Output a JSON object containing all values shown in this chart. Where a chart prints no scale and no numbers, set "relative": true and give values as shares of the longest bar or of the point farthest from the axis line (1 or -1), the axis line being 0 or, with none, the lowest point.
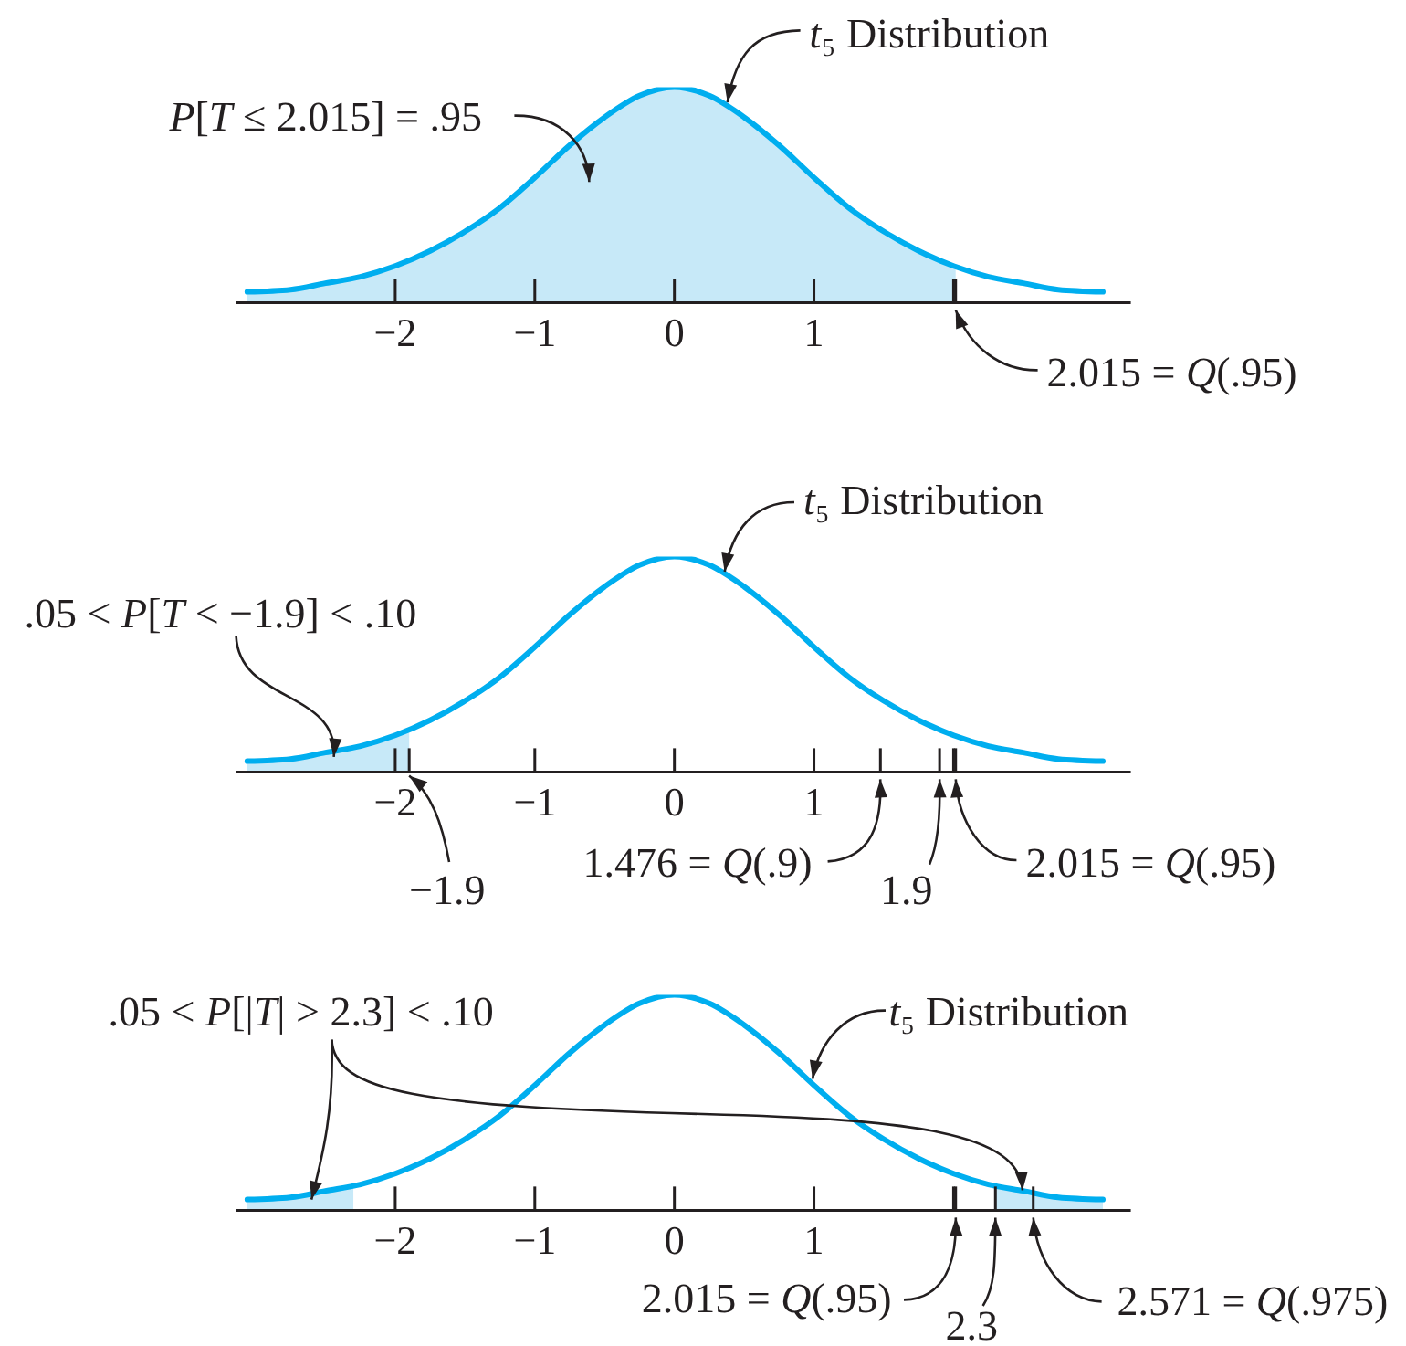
{
  "chart_data": [
    {
      "type": "line",
      "relative": true,
      "xlim": [
        -3.14,
        3.27
      ],
      "xticks": [
        -2,
        -1,
        0,
        1,
        {
          "value": 2,
          "label": null
        },
        {
          "value": 2.015,
          "label": null
        }
      ],
      "series": [
        {
          "type": "area",
          "color": "#c7e9f8",
          "x": [
            -3.06,
            -2.75,
            -2.5,
            -2.25,
            -2,
            -1.75,
            -1.5,
            -1.25,
            -1,
            -0.75,
            -0.5,
            -0.25,
            0,
            0.25,
            0.5,
            0.75,
            1,
            1.25,
            1.5,
            1.75,
            2,
            2.015
          ],
          "values": [
            0.05,
            0.06,
            0.09,
            0.12,
            0.17,
            0.24,
            0.33,
            0.44,
            0.58,
            0.73,
            0.86,
            0.96,
            1,
            0.96,
            0.86,
            0.73,
            0.58,
            0.44,
            0.33,
            0.24,
            0.17,
            0.17
          ]
        },
        {
          "color": "#00aeef",
          "x": [
            -3.06,
            -2.75,
            -2.5,
            -2.25,
            -2,
            -1.75,
            -1.5,
            -1.25,
            -1,
            -0.75,
            -0.5,
            -0.25,
            0,
            0.25,
            0.5,
            0.75,
            1,
            1.25,
            1.5,
            1.75,
            2,
            2.25,
            2.5,
            2.75,
            3.07
          ],
          "values": [
            0.05,
            0.06,
            0.09,
            0.12,
            0.17,
            0.24,
            0.33,
            0.44,
            0.58,
            0.73,
            0.86,
            0.96,
            1,
            0.96,
            0.86,
            0.73,
            0.58,
            0.44,
            0.33,
            0.24,
            0.17,
            0.12,
            0.09,
            0.06,
            0.05
          ]
        }
      ],
      "annotations": [
        {
          "text": "t₅ Distribution",
          "x": 0.38,
          "y": 0.93
        },
        "P[T ≤ 2.015] = .95",
        {
          "text": "2.015 = Q(.95)",
          "x": 2.015,
          "y": 0
        }
      ]
    },
    {
      "type": "line",
      "relative": true,
      "xlim": [
        -3.14,
        3.27
      ],
      "xticks": [
        -2,
        {
          "value": -1.9,
          "label": null
        },
        -1,
        0,
        1,
        {
          "value": 1.476,
          "label": null
        },
        {
          "value": 1.9,
          "label": null
        },
        {
          "value": 2,
          "label": null
        },
        {
          "value": 2.015,
          "label": null
        }
      ],
      "series": [
        {
          "type": "area",
          "color": "#c7e9f8",
          "x": [
            -3.06,
            -2.75,
            -2.5,
            -2.25,
            -2,
            -1.9
          ],
          "values": [
            0.05,
            0.06,
            0.09,
            0.12,
            0.17,
            0.2
          ]
        },
        {
          "color": "#00aeef",
          "x": [
            -3.06,
            -2.75,
            -2.5,
            -2.25,
            -2,
            -1.75,
            -1.5,
            -1.25,
            -1,
            -0.75,
            -0.5,
            -0.25,
            0,
            0.25,
            0.5,
            0.75,
            1,
            1.25,
            1.5,
            1.75,
            2,
            2.25,
            2.5,
            2.75,
            3.07
          ],
          "values": [
            0.05,
            0.06,
            0.09,
            0.12,
            0.17,
            0.24,
            0.33,
            0.44,
            0.58,
            0.73,
            0.86,
            0.96,
            1,
            0.96,
            0.86,
            0.73,
            0.58,
            0.44,
            0.33,
            0.24,
            0.17,
            0.12,
            0.09,
            0.06,
            0.05
          ]
        }
      ],
      "annotations": [
        {
          "text": "t₅ Distribution",
          "x": 0.36,
          "y": 0.93
        },
        {
          "text": ".05 < P[T < −1.9] < .10",
          "x": -2.44,
          "y": 0.07
        },
        {
          "text": "−1.9",
          "x": -1.9,
          "y": 0
        },
        "1.476 = Q(.9)",
        "1.9",
        "2.015 = Q(.95)"
      ]
    },
    {
      "type": "line",
      "relative": true,
      "xlim": [
        -3.14,
        3.27
      ],
      "xticks": [
        -2,
        -1,
        0,
        1,
        {
          "value": 2,
          "label": null
        },
        {
          "value": 2.015,
          "label": null
        },
        {
          "value": 2.3,
          "label": null
        },
        {
          "value": 2.571,
          "label": null
        }
      ],
      "series": [
        {
          "type": "area",
          "color": "#c7e9f8",
          "x": [
            -3.06,
            -2.75,
            -2.5,
            -2.3
          ],
          "values": [
            0.05,
            0.06,
            0.09,
            0.11
          ]
        },
        {
          "type": "area",
          "color": "#c7e9f8",
          "x": [
            2.3,
            2.5,
            2.75,
            3.07
          ],
          "values": [
            0.11,
            0.09,
            0.06,
            0.05
          ]
        },
        {
          "color": "#00aeef",
          "x": [
            -3.06,
            -2.75,
            -2.5,
            -2.25,
            -2,
            -1.75,
            -1.5,
            -1.25,
            -1,
            -0.75,
            -0.5,
            -0.25,
            0,
            0.25,
            0.5,
            0.75,
            1,
            1.25,
            1.5,
            1.75,
            2,
            2.25,
            2.5,
            2.75,
            3.07
          ],
          "values": [
            0.05,
            0.06,
            0.09,
            0.12,
            0.17,
            0.24,
            0.33,
            0.44,
            0.58,
            0.73,
            0.86,
            0.96,
            1,
            0.96,
            0.86,
            0.73,
            0.58,
            0.44,
            0.33,
            0.24,
            0.17,
            0.12,
            0.09,
            0.06,
            0.05
          ]
        }
      ],
      "annotations": [
        {
          "text": ".05 < P[|T| > 2.3] < .10",
          "x": -2.6,
          "y": 0.05
        },
        {
          "text": "t₅ Distribution",
          "x": 0.99,
          "y": 0.61
        },
        "2.015 = Q(.95)",
        {
          "text": "2.3",
          "x": 2.3,
          "y": 0
        },
        {
          "text": "2.571 = Q(.975)",
          "x": 2.571,
          "y": 0
        }
      ]
    }
  ]
}
